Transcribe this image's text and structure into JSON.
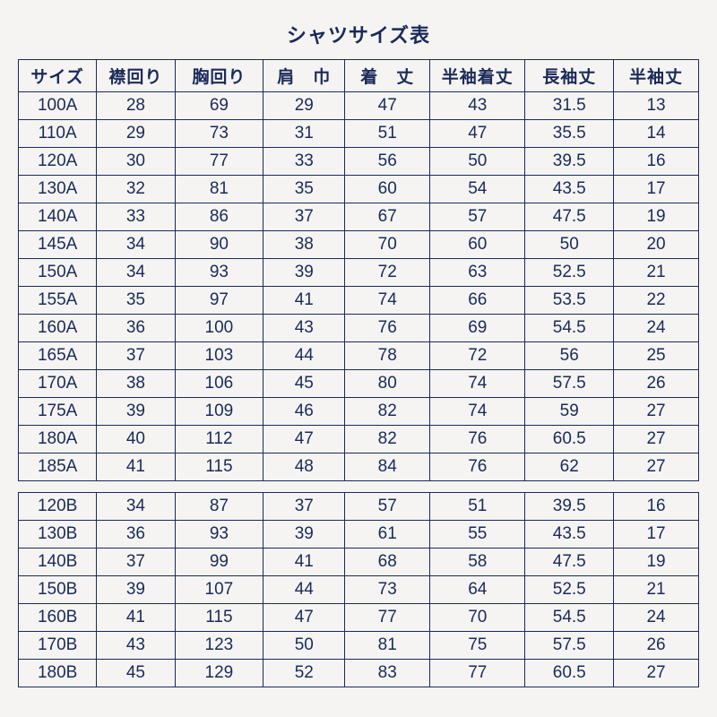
{
  "title": "シャツサイズ表",
  "columns": [
    "サイズ",
    "襟回り",
    "胸回り",
    "肩　巾",
    "着　丈",
    "半袖着丈",
    "長袖丈",
    "半袖丈"
  ],
  "column_classes": [
    "col-size",
    "col-neck",
    "col-chest",
    "col-shoulder",
    "col-length",
    "col-sslen",
    "col-lsleeve",
    "col-ssleeve"
  ],
  "group_a": [
    [
      "100A",
      "28",
      "69",
      "29",
      "47",
      "43",
      "31.5",
      "13"
    ],
    [
      "110A",
      "29",
      "73",
      "31",
      "51",
      "47",
      "35.5",
      "14"
    ],
    [
      "120A",
      "30",
      "77",
      "33",
      "56",
      "50",
      "39.5",
      "16"
    ],
    [
      "130A",
      "32",
      "81",
      "35",
      "60",
      "54",
      "43.5",
      "17"
    ],
    [
      "140A",
      "33",
      "86",
      "37",
      "67",
      "57",
      "47.5",
      "19"
    ],
    [
      "145A",
      "34",
      "90",
      "38",
      "70",
      "60",
      "50",
      "20"
    ],
    [
      "150A",
      "34",
      "93",
      "39",
      "72",
      "63",
      "52.5",
      "21"
    ],
    [
      "155A",
      "35",
      "97",
      "41",
      "74",
      "66",
      "53.5",
      "22"
    ],
    [
      "160A",
      "36",
      "100",
      "43",
      "76",
      "69",
      "54.5",
      "24"
    ],
    [
      "165A",
      "37",
      "103",
      "44",
      "78",
      "72",
      "56",
      "25"
    ],
    [
      "170A",
      "38",
      "106",
      "45",
      "80",
      "74",
      "57.5",
      "26"
    ],
    [
      "175A",
      "39",
      "109",
      "46",
      "82",
      "74",
      "59",
      "27"
    ],
    [
      "180A",
      "40",
      "112",
      "47",
      "82",
      "76",
      "60.5",
      "27"
    ],
    [
      "185A",
      "41",
      "115",
      "48",
      "84",
      "76",
      "62",
      "27"
    ]
  ],
  "group_b": [
    [
      "120B",
      "34",
      "87",
      "37",
      "57",
      "51",
      "39.5",
      "16"
    ],
    [
      "130B",
      "36",
      "93",
      "39",
      "61",
      "55",
      "43.5",
      "17"
    ],
    [
      "140B",
      "37",
      "99",
      "41",
      "68",
      "58",
      "47.5",
      "19"
    ],
    [
      "150B",
      "39",
      "107",
      "44",
      "73",
      "64",
      "52.5",
      "21"
    ],
    [
      "160B",
      "41",
      "115",
      "47",
      "77",
      "70",
      "54.5",
      "24"
    ],
    [
      "170B",
      "43",
      "123",
      "50",
      "81",
      "75",
      "57.5",
      "26"
    ],
    [
      "180B",
      "45",
      "129",
      "52",
      "83",
      "77",
      "60.5",
      "27"
    ]
  ],
  "style": {
    "background_color": "#f5f4f2",
    "text_color": "#1a2a5a",
    "border_color": "#1a2a5a",
    "title_fontsize": 22,
    "cell_fontsize": 19
  }
}
